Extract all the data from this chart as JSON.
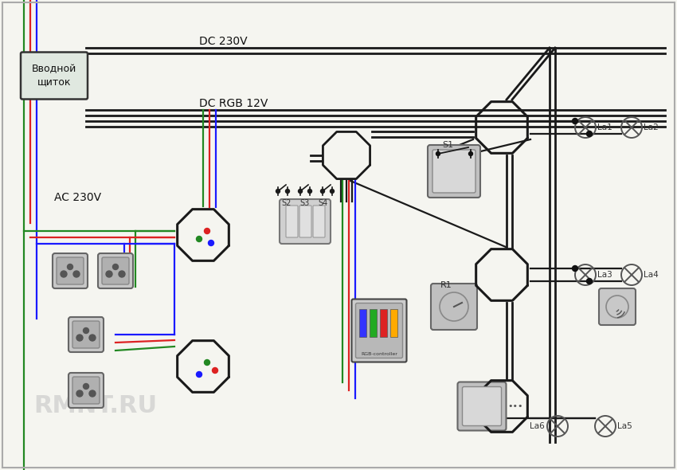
{
  "bg_color": "#f5f5f0",
  "title": "",
  "wire_colors": {
    "black": "#1a1a1a",
    "blue": "#1a1aff",
    "red": "#dd2222",
    "green": "#228822",
    "gray": "#888888"
  },
  "labels": {
    "panel": "Вводной\nщиток",
    "dc230": "DC 230V",
    "dc_rgb": "DC RGB 12V",
    "ac230": "AC 230V",
    "s1": "S1",
    "r1": "R1",
    "la1": "La1",
    "la2": "La2",
    "la3": "La3",
    "la4": "La4",
    "la5": "La5",
    "la6": "La6",
    "rmnt": "RMNT.RU",
    "s2": "S2",
    "s3": "S3",
    "s4": "S4"
  }
}
